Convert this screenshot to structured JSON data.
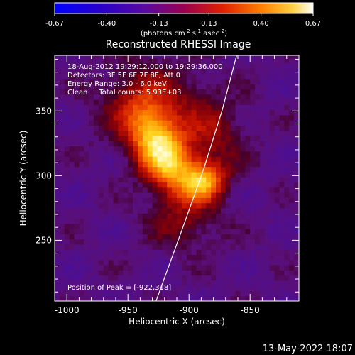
{
  "chart_data": {
    "type": "heatmap",
    "title": "Reconstructed RHESSI Image",
    "xlabel": "Heliocentric X (arcsec)",
    "ylabel": "Heliocentric Y (arcsec)",
    "xlim": [
      -1010,
      -810
    ],
    "ylim": [
      203,
      393
    ],
    "x_ticks": [
      -1000,
      -950,
      -900,
      -850
    ],
    "y_ticks": [
      250,
      300,
      350
    ],
    "colorbar": {
      "range": [
        -0.67,
        0.67
      ],
      "ticks": [
        "-0.67",
        "-0.40",
        "-0.13",
        "0.13",
        "0.40",
        "0.67"
      ],
      "units_html": "(photons cm<tspan dy='-4' font-size='7'>-2</tspan><tspan dy='4'> s</tspan><tspan dy='-4' font-size='7'>-1</tspan><tspan dy='4'> asec</tspan><tspan dy='-4' font-size='7'>-2</tspan><tspan dy='4'>)</tspan>",
      "units_text": "(photons cm-2 s-1 asec-2)"
    },
    "sources": [
      {
        "x": -922,
        "y": 318,
        "sx": 14,
        "sy": 26,
        "amp": 0.67,
        "angle": 30
      },
      {
        "x": -888,
        "y": 296,
        "sx": 12,
        "sy": 10,
        "amp": 0.48,
        "angle": 0
      },
      {
        "x": -930,
        "y": 355,
        "sx": 28,
        "sy": 22,
        "amp": 0.22,
        "angle": 0
      },
      {
        "x": -880,
        "y": 330,
        "sx": 18,
        "sy": 22,
        "amp": 0.18,
        "angle": 0
      },
      {
        "x": -905,
        "y": 262,
        "sx": 22,
        "sy": 14,
        "amp": 0.14,
        "angle": 0
      }
    ],
    "limb_curve": [
      [
        -927,
        203
      ],
      [
        -905,
        260
      ],
      [
        -888,
        305
      ],
      [
        -873,
        350
      ],
      [
        -861,
        393
      ]
    ],
    "peak": [
      -922,
      318
    ]
  },
  "annotations": {
    "time": "18-Aug-2012 19:29:12.000 to 19:29:36.000",
    "detectors": "Detectors: 3F 5F 6F 7F 8F, Att 0",
    "energy": "Energy Range: 3.0 - 6.0 keV",
    "clean": "Clean     Total counts: 5.93E+03",
    "peak_label": "Position of Peak = [-922,318]"
  },
  "footer": {
    "timestamp": "13-May-2022 18:07"
  }
}
